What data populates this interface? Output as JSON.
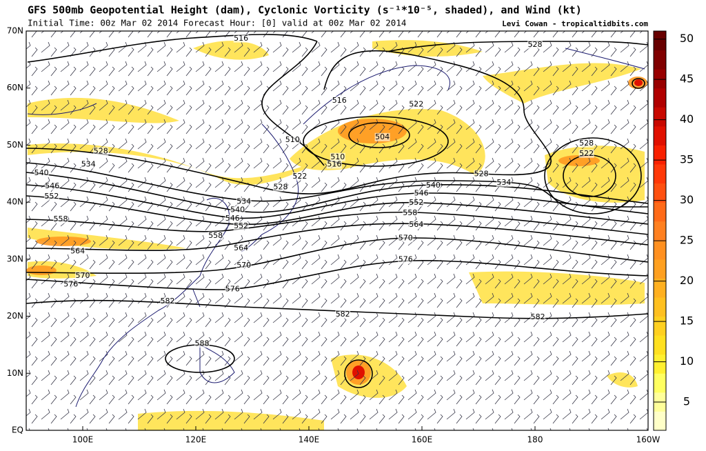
{
  "header": {
    "title": "GFS 500mb Geopotential Height (dam), Cyclonic Vorticity (s⁻¹*10⁻⁵, shaded), and Wind (kt)",
    "subtitle": "Initial Time: 00z Mar 02 2014 Forecast Hour: [0] valid at 00z Mar 02 2014",
    "credit": "Levi Cowan - tropicaltidbits.com"
  },
  "map": {
    "lonlim": [
      90,
      200
    ],
    "latlim": [
      0,
      70
    ],
    "lonticks": [
      {
        "value": 100,
        "label": "100E"
      },
      {
        "value": 120,
        "label": "120E"
      },
      {
        "value": 140,
        "label": "140E"
      },
      {
        "value": 160,
        "label": "160E"
      },
      {
        "value": 180,
        "label": "180"
      },
      {
        "value": 200,
        "label": "160W"
      }
    ],
    "latticks": [
      {
        "value": 0,
        "label": "EQ"
      },
      {
        "value": 10,
        "label": "10N"
      },
      {
        "value": 20,
        "label": "20N"
      },
      {
        "value": 30,
        "label": "30N"
      },
      {
        "value": 40,
        "label": "40N"
      },
      {
        "value": 50,
        "label": "50N"
      },
      {
        "value": 60,
        "label": "60N"
      },
      {
        "value": 70,
        "label": "70N"
      }
    ],
    "contour_labels": [
      {
        "value": 516,
        "lon": 128.0,
        "lat": 68.7
      },
      {
        "value": 516,
        "lon": 145.4,
        "lat": 57.8
      },
      {
        "value": 522,
        "lon": 159.0,
        "lat": 57.1
      },
      {
        "value": 528,
        "lon": 180.0,
        "lat": 67.6
      },
      {
        "value": 510,
        "lon": 137.1,
        "lat": 50.9
      },
      {
        "value": 504,
        "lon": 153.0,
        "lat": 51.4
      },
      {
        "value": 510,
        "lon": 145.1,
        "lat": 47.9
      },
      {
        "value": 516,
        "lon": 144.5,
        "lat": 46.6
      },
      {
        "value": 522,
        "lon": 138.4,
        "lat": 44.5
      },
      {
        "value": 528,
        "lon": 135.0,
        "lat": 42.6
      },
      {
        "value": 528,
        "lon": 103.2,
        "lat": 48.9
      },
      {
        "value": 534,
        "lon": 101.0,
        "lat": 46.6
      },
      {
        "value": 540,
        "lon": 92.7,
        "lat": 45.1
      },
      {
        "value": 546,
        "lon": 94.6,
        "lat": 42.8
      },
      {
        "value": 552,
        "lon": 94.5,
        "lat": 41.0
      },
      {
        "value": 558,
        "lon": 96.1,
        "lat": 37.0
      },
      {
        "value": 564,
        "lon": 99.1,
        "lat": 31.4
      },
      {
        "value": 570,
        "lon": 100.0,
        "lat": 27.1
      },
      {
        "value": 576,
        "lon": 97.9,
        "lat": 25.6
      },
      {
        "value": 582,
        "lon": 115.0,
        "lat": 22.6
      },
      {
        "value": 534,
        "lon": 128.5,
        "lat": 40.1
      },
      {
        "value": 540,
        "lon": 127.4,
        "lat": 38.6
      },
      {
        "value": 546,
        "lon": 126.5,
        "lat": 37.1
      },
      {
        "value": 552,
        "lon": 128.0,
        "lat": 35.8
      },
      {
        "value": 558,
        "lon": 123.5,
        "lat": 34.1
      },
      {
        "value": 564,
        "lon": 128.0,
        "lat": 31.9
      },
      {
        "value": 570,
        "lon": 128.5,
        "lat": 28.9
      },
      {
        "value": 576,
        "lon": 126.5,
        "lat": 24.7
      },
      {
        "value": 582,
        "lon": 146.0,
        "lat": 20.3
      },
      {
        "value": 540,
        "lon": 162.0,
        "lat": 42.9
      },
      {
        "value": 546,
        "lon": 159.9,
        "lat": 41.5
      },
      {
        "value": 552,
        "lon": 159.0,
        "lat": 39.9
      },
      {
        "value": 558,
        "lon": 157.9,
        "lat": 38.1
      },
      {
        "value": 564,
        "lon": 159.0,
        "lat": 36.0
      },
      {
        "value": 570,
        "lon": 157.1,
        "lat": 33.7
      },
      {
        "value": 576,
        "lon": 157.1,
        "lat": 29.9
      },
      {
        "value": 582,
        "lon": 180.5,
        "lat": 19.8
      },
      {
        "value": 528,
        "lon": 170.5,
        "lat": 44.9
      },
      {
        "value": 534,
        "lon": 174.5,
        "lat": 43.4
      },
      {
        "value": 528,
        "lon": 189.1,
        "lat": 50.3
      },
      {
        "value": 522,
        "lon": 189.1,
        "lat": 48.5
      },
      {
        "value": 588,
        "lon": 121.1,
        "lat": 15.2
      }
    ]
  },
  "colorbar": {
    "lim": [
      1.5,
      51
    ],
    "ticks": [
      5,
      10,
      15,
      20,
      25,
      30,
      35,
      40,
      45,
      50
    ],
    "colors": [
      "#ffffc8",
      "#ffff9a",
      "#ffff60",
      "#fff030",
      "#ffe020",
      "#ffd020",
      "#ffc020",
      "#ffb020",
      "#ffa020",
      "#ff9020",
      "#ff8020",
      "#ff6a18",
      "#ff5010",
      "#ff3808",
      "#f82000",
      "#e01000",
      "#c80800",
      "#b00000",
      "#980000",
      "#800000",
      "#680000"
    ]
  }
}
